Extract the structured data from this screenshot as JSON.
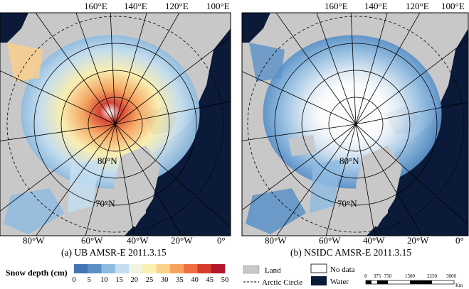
{
  "panels": [
    {
      "id": "a",
      "caption": "(a) UB AMSR-E 2011.3.15",
      "top_labels": [
        "160°E",
        "140°E",
        "120°E",
        "100°E"
      ],
      "bottom_labels": [
        "80°W",
        "60°W",
        "40°W",
        "20°W",
        "0°"
      ],
      "lat_labels": [
        "80°N",
        "70°N"
      ]
    },
    {
      "id": "b",
      "caption": "(b) NSIDC AMSR-E 2011.3.15",
      "top_labels": [
        "160°E",
        "140°E",
        "120°E",
        "100°E"
      ],
      "bottom_labels": [
        "80°W",
        "60°W",
        "40°W",
        "20°W",
        "0°"
      ],
      "lat_labels": [
        "80°N",
        "70°N"
      ]
    }
  ],
  "colorbar": {
    "title": "Snow depth (cm)",
    "ticks": [
      "0",
      "5",
      "10",
      "15",
      "20",
      "25",
      "30",
      "35",
      "40",
      "45",
      "50"
    ],
    "colors": [
      "#4575b4",
      "#5b91c8",
      "#8fbbe0",
      "#c3def0",
      "#eef4e0",
      "#fbf0b0",
      "#fcd089",
      "#f7a25a",
      "#ee6e3f",
      "#d63c2c",
      "#b2182b"
    ]
  },
  "legend": {
    "land": "Land",
    "nodata": "No data",
    "arctic_circle": "Arctic Circle",
    "water": "Water",
    "land_color": "#c8c8c8",
    "water_color": "#0a1a38"
  },
  "scalebar": {
    "ticks": [
      "0",
      "375",
      "750",
      "1500",
      "2250",
      "3000"
    ],
    "unit": "Km"
  }
}
